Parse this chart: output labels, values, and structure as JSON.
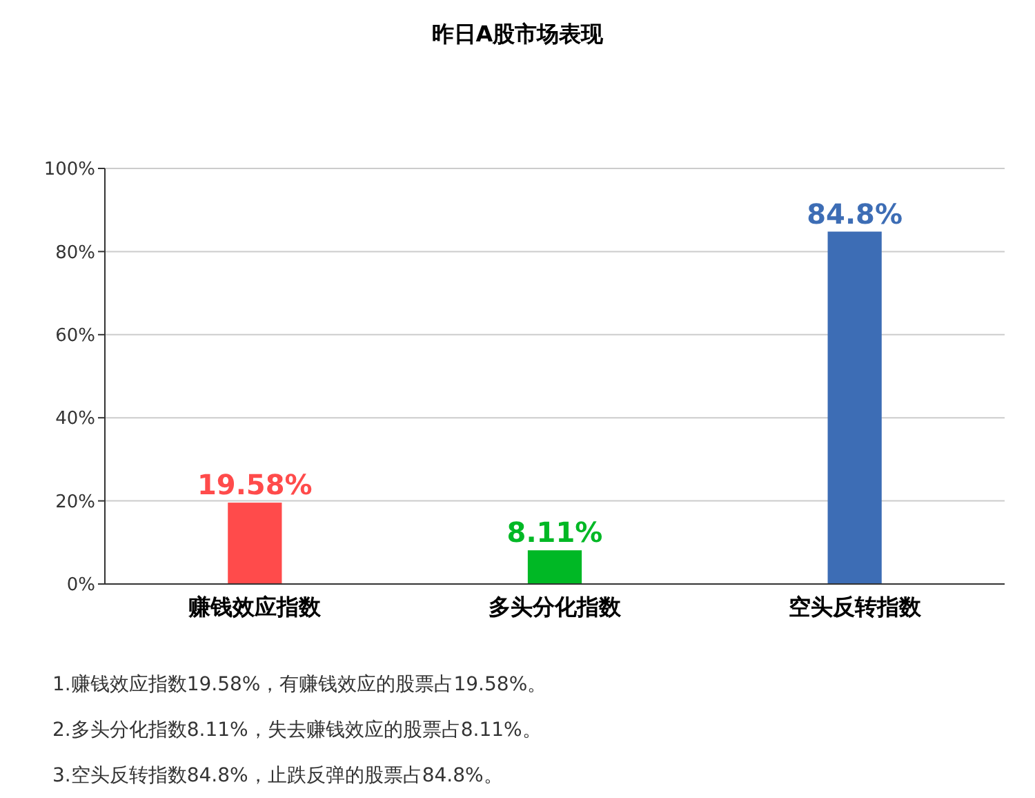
{
  "chart_data": {
    "type": "bar",
    "title": "昨日A股市场表现",
    "categories": [
      "赚钱效应指数",
      "多头分化指数",
      "空头反转指数"
    ],
    "values": [
      19.58,
      8.11,
      84.8
    ],
    "colors": [
      "#ff4b4b",
      "#00b825",
      "#3d6db5"
    ],
    "value_labels": [
      "19.58%",
      "8.11%",
      "84.8%"
    ],
    "ylim": [
      0,
      100
    ],
    "yticks": [
      {
        "value": 0,
        "label": "0%"
      },
      {
        "value": 20,
        "label": "20%"
      },
      {
        "value": 40,
        "label": "40%"
      },
      {
        "value": 60,
        "label": "60%"
      },
      {
        "value": 80,
        "label": "80%"
      },
      {
        "value": 100,
        "label": "100%"
      }
    ],
    "grid": "y",
    "annotations": [
      "1.赚钱效应指数19.58%，有赚钱效应的股票占19.58%。",
      "2.多头分化指数8.11%，失去赚钱效应的股票占8.11%。",
      "3.空头反转指数84.8%，止跌反弹的股票占84.8%。"
    ]
  }
}
